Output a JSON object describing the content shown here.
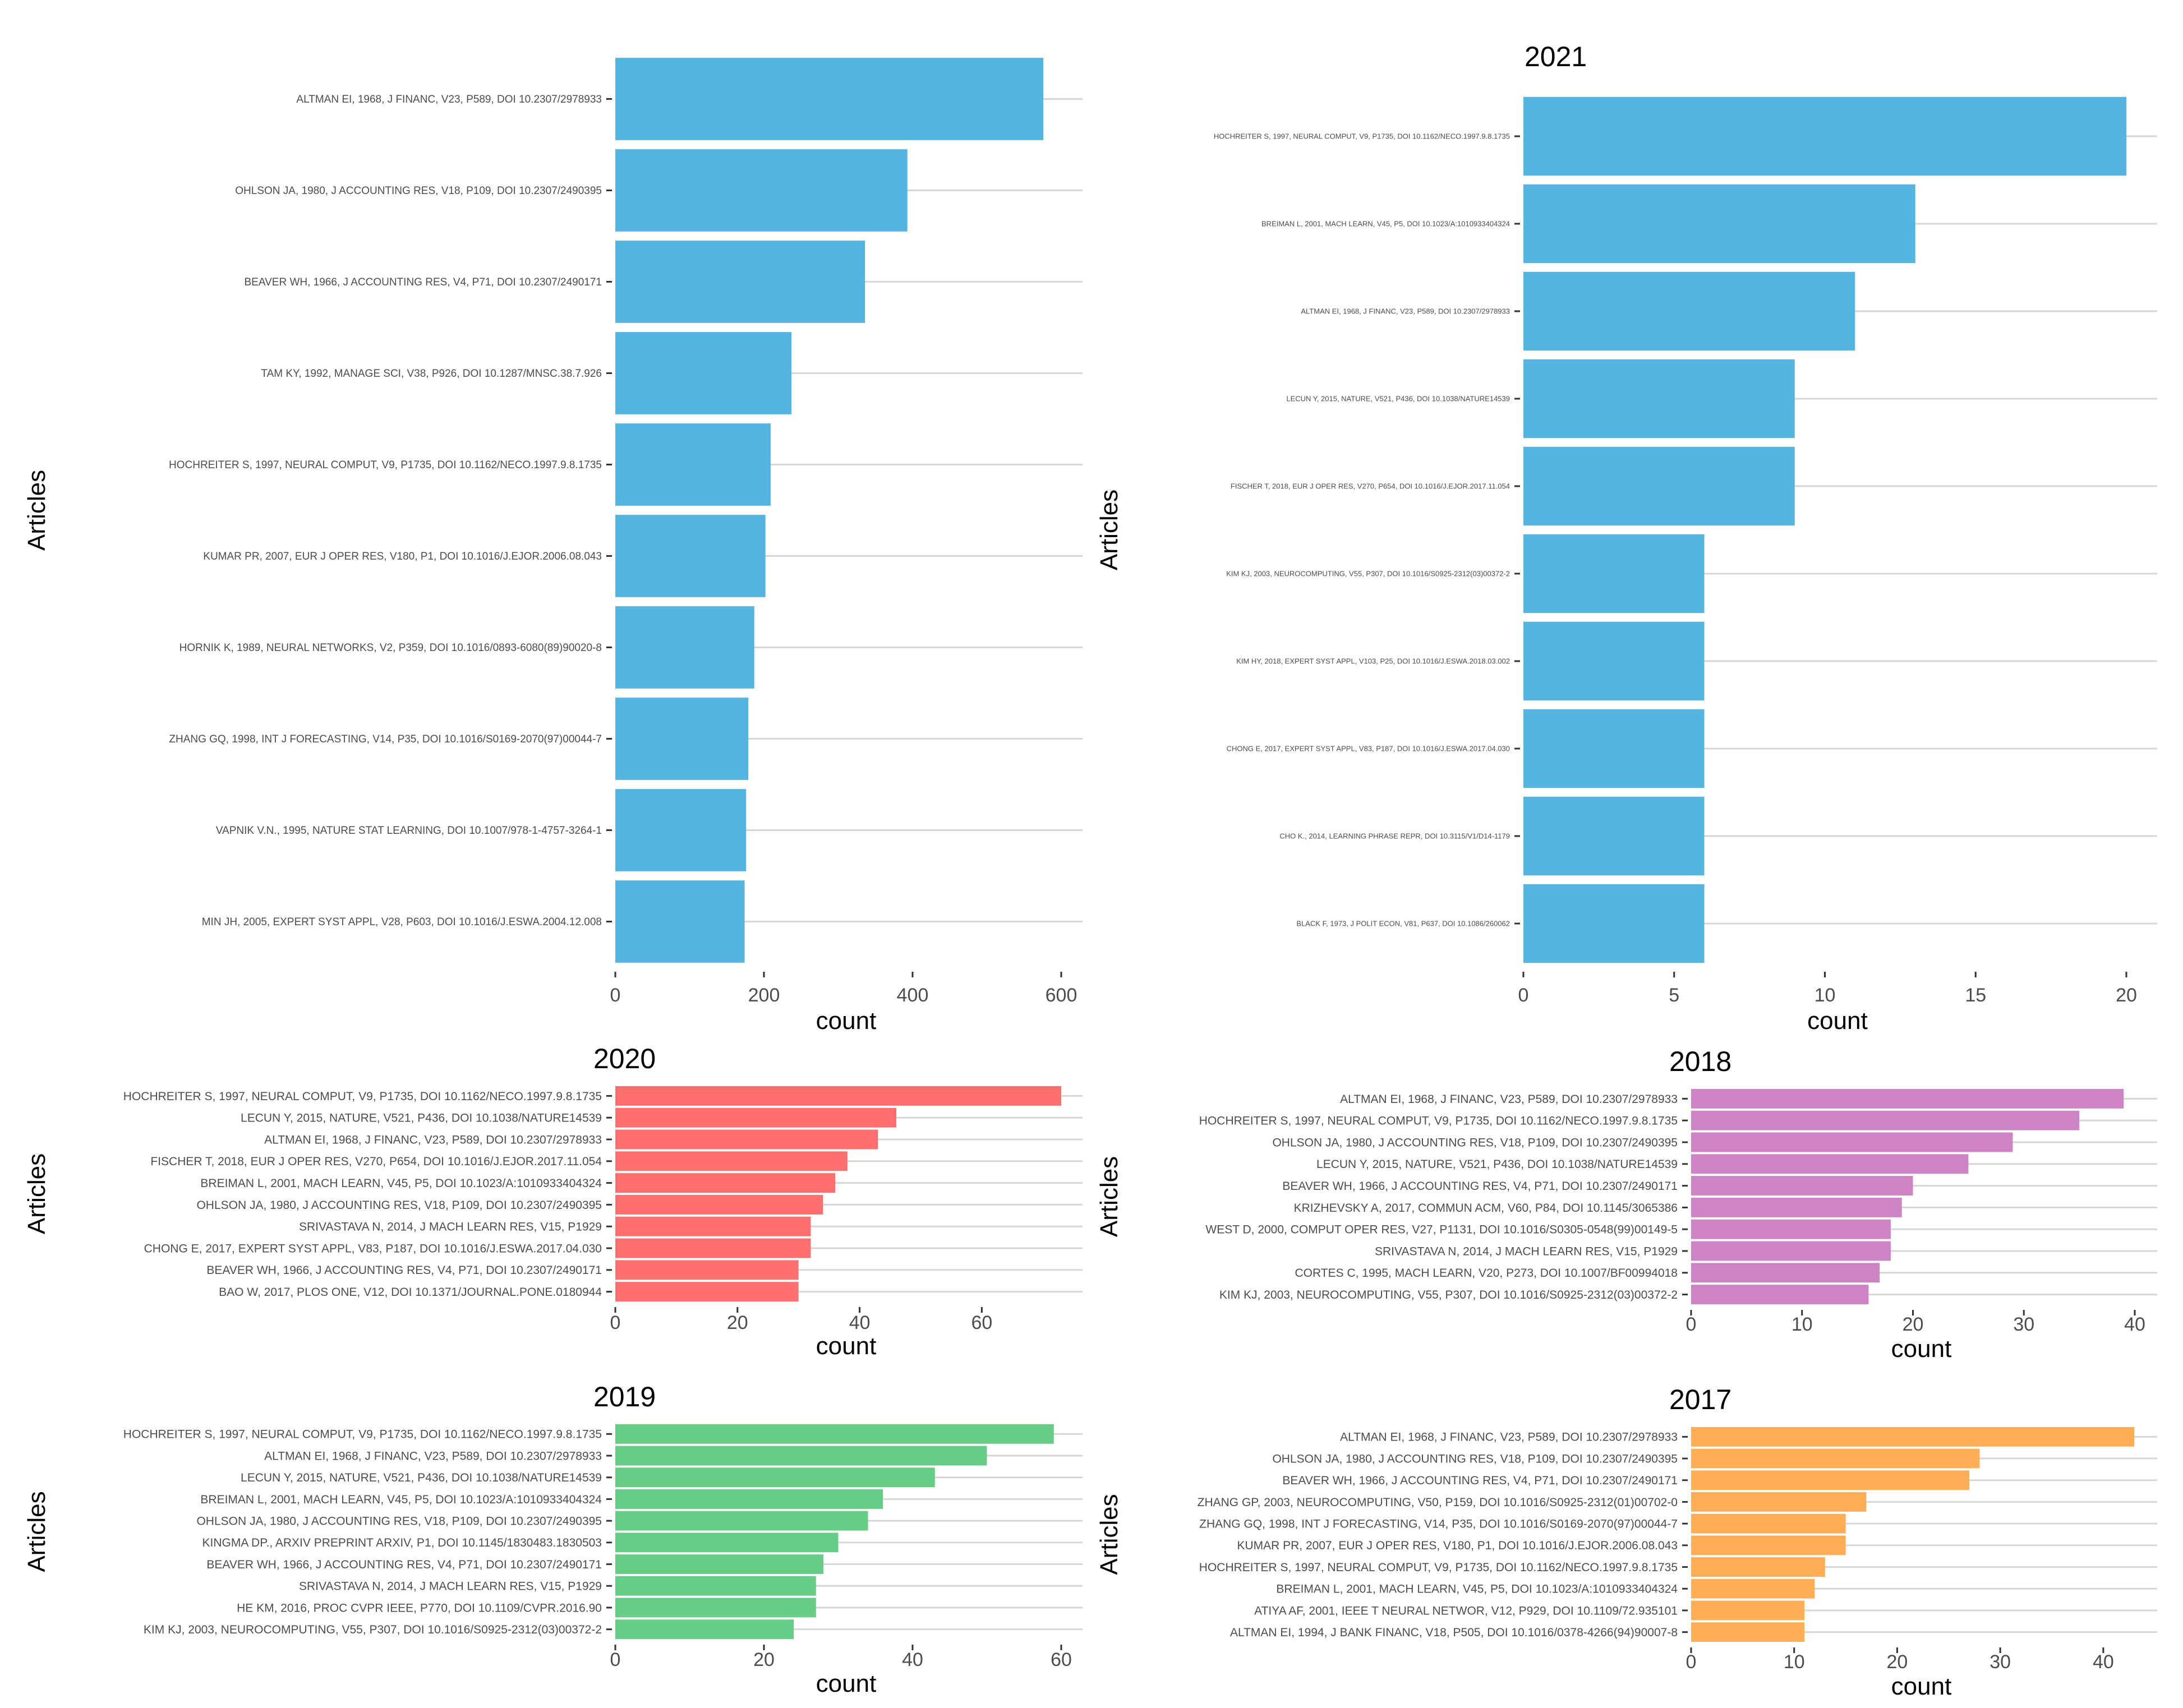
{
  "chart_data": [
    {
      "type": "bar",
      "orientation": "horizontal",
      "title": "",
      "xlabel": "count",
      "ylabel": "Articles",
      "color": "#56b4e0",
      "xlim": [
        0,
        600
      ],
      "xticks": [
        0,
        200,
        400,
        600
      ],
      "grid": true,
      "categories": [
        "ALTMAN EI, 1968, J FINANC, V23, P589, DOI 10.2307/2978933",
        "OHLSON JA, 1980, J ACCOUNTING RES, V18, P109, DOI 10.2307/2490395",
        "BEAVER WH, 1966, J ACCOUNTING RES, V4, P71, DOI 10.2307/2490171",
        "TAM KY, 1992, MANAGE SCI, V38, P926, DOI 10.1287/MNSC.38.7.926",
        "HOCHREITER S, 1997, NEURAL COMPUT, V9, P1735, DOI 10.1162/NECO.1997.9.8.1735",
        "KUMAR PR, 2007, EUR J OPER RES, V180, P1, DOI 10.1016/J.EJOR.2006.08.043",
        "HORNIK K, 1989, NEURAL NETWORKS, V2, P359, DOI 10.1016/0893-6080(89)90020-8",
        "ZHANG GQ, 1998, INT J FORECASTING, V14, P35, DOI 10.1016/S0169-2070(97)00044-7",
        "VAPNIK V.N., 1995, NATURE STAT LEARNING, DOI 10.1007/978-1-4757-3264-1",
        "MIN JH, 2005, EXPERT SYST APPL, V28, P603, DOI 10.1016/J.ESWA.2004.12.008"
      ],
      "values": [
        576,
        393,
        336,
        237,
        209,
        202,
        187,
        179,
        176,
        174
      ]
    },
    {
      "type": "bar",
      "orientation": "horizontal",
      "title": "2021",
      "xlabel": "count",
      "ylabel": "Articles",
      "color": "#56b4e0",
      "xlim": [
        0,
        20
      ],
      "xticks": [
        0,
        5,
        10,
        15,
        20
      ],
      "grid": true,
      "categories": [
        "HOCHREITER S, 1997, NEURAL COMPUT, V9, P1735, DOI 10.1162/NECO.1997.9.8.1735",
        "BREIMAN L, 2001, MACH LEARN, V45, P5, DOI 10.1023/A:1010933404324",
        "ALTMAN EI, 1968, J FINANC, V23, P589, DOI 10.2307/2978933",
        "LECUN Y, 2015, NATURE, V521, P436, DOI 10.1038/NATURE14539",
        "FISCHER T, 2018, EUR J OPER RES, V270, P654, DOI 10.1016/J.EJOR.2017.11.054",
        "KIM KJ, 2003, NEUROCOMPUTING, V55, P307, DOI 10.1016/S0925-2312(03)00372-2",
        "KIM HY, 2018, EXPERT SYST APPL, V103, P25, DOI 10.1016/J.ESWA.2018.03.002",
        "CHONG E, 2017, EXPERT SYST APPL, V83, P187, DOI 10.1016/J.ESWA.2017.04.030",
        "CHO K., 2014, LEARNING PHRASE REPR, DOI 10.3115/V1/D14-1179",
        "BLACK F, 1973, J POLIT ECON, V81, P637, DOI 10.1086/260062"
      ],
      "values": [
        20,
        13,
        11,
        9,
        9,
        6,
        6,
        6,
        6,
        6
      ]
    },
    {
      "type": "bar",
      "orientation": "horizontal",
      "title": "2020",
      "xlabel": "count",
      "ylabel": "Articles",
      "color": "#fe6f6f",
      "xlim": [
        0,
        73
      ],
      "xticks": [
        0,
        20,
        40,
        60
      ],
      "grid": true,
      "categories": [
        "HOCHREITER S, 1997, NEURAL COMPUT, V9, P1735, DOI 10.1162/NECO.1997.9.8.1735",
        "LECUN Y, 2015, NATURE, V521, P436, DOI 10.1038/NATURE14539",
        "ALTMAN EI, 1968, J FINANC, V23, P589, DOI 10.2307/2978933",
        "FISCHER T, 2018, EUR J OPER RES, V270, P654, DOI 10.1016/J.EJOR.2017.11.054",
        "BREIMAN L, 2001, MACH LEARN, V45, P5, DOI 10.1023/A:1010933404324",
        "OHLSON JA, 1980, J ACCOUNTING RES, V18, P109, DOI 10.2307/2490395",
        "SRIVASTAVA N, 2014, J MACH LEARN RES, V15, P1929",
        "CHONG E, 2017, EXPERT SYST APPL, V83, P187, DOI 10.1016/J.ESWA.2017.04.030",
        "BEAVER WH, 1966, J ACCOUNTING RES, V4, P71, DOI 10.2307/2490171",
        "BAO W, 2017, PLOS ONE, V12, DOI 10.1371/JOURNAL.PONE.0180944"
      ],
      "values": [
        73,
        46,
        43,
        38,
        36,
        34,
        32,
        32,
        30,
        30
      ]
    },
    {
      "type": "bar",
      "orientation": "horizontal",
      "title": "2018",
      "xlabel": "count",
      "ylabel": "Articles",
      "color": "#cc84c4",
      "xlim": [
        0,
        40
      ],
      "xticks": [
        0,
        10,
        20,
        30,
        40
      ],
      "grid": true,
      "categories": [
        "ALTMAN EI, 1968, J FINANC, V23, P589, DOI 10.2307/2978933",
        "HOCHREITER S, 1997, NEURAL COMPUT, V9, P1735, DOI 10.1162/NECO.1997.9.8.1735",
        "OHLSON JA, 1980, J ACCOUNTING RES, V18, P109, DOI 10.2307/2490395",
        "LECUN Y, 2015, NATURE, V521, P436, DOI 10.1038/NATURE14539",
        "BEAVER WH, 1966, J ACCOUNTING RES, V4, P71, DOI 10.2307/2490171",
        "KRIZHEVSKY A, 2017, COMMUN ACM, V60, P84, DOI 10.1145/3065386",
        "WEST D, 2000, COMPUT OPER RES, V27, P1131, DOI 10.1016/S0305-0548(99)00149-5",
        "SRIVASTAVA N, 2014, J MACH LEARN RES, V15, P1929",
        "CORTES C, 1995, MACH LEARN, V20, P273, DOI 10.1007/BF00994018",
        "KIM KJ, 2003, NEUROCOMPUTING, V55, P307, DOI 10.1016/S0925-2312(03)00372-2"
      ],
      "values": [
        39,
        35,
        29,
        25,
        20,
        19,
        18,
        18,
        17,
        16
      ]
    },
    {
      "type": "bar",
      "orientation": "horizontal",
      "title": "2019",
      "xlabel": "count",
      "ylabel": "Articles",
      "color": "#66cc86",
      "xlim": [
        0,
        60
      ],
      "xticks": [
        0,
        20,
        40,
        60
      ],
      "grid": true,
      "categories": [
        "HOCHREITER S, 1997, NEURAL COMPUT, V9, P1735, DOI 10.1162/NECO.1997.9.8.1735",
        "ALTMAN EI, 1968, J FINANC, V23, P589, DOI 10.2307/2978933",
        "LECUN Y, 2015, NATURE, V521, P436, DOI 10.1038/NATURE14539",
        "BREIMAN L, 2001, MACH LEARN, V45, P5, DOI 10.1023/A:1010933404324",
        "OHLSON JA, 1980, J ACCOUNTING RES, V18, P109, DOI 10.2307/2490395",
        "KINGMA DP., ARXIV PREPRINT ARXIV, P1, DOI 10.1145/1830483.1830503",
        "BEAVER WH, 1966, J ACCOUNTING RES, V4, P71, DOI 10.2307/2490171",
        "SRIVASTAVA N, 2014, J MACH LEARN RES, V15, P1929",
        "HE KM, 2016, PROC CVPR IEEE, P770, DOI 10.1109/CVPR.2016.90",
        "KIM KJ, 2003, NEUROCOMPUTING, V55, P307, DOI 10.1016/S0925-2312(03)00372-2"
      ],
      "values": [
        59,
        50,
        43,
        36,
        34,
        30,
        28,
        27,
        27,
        24
      ]
    },
    {
      "type": "bar",
      "orientation": "horizontal",
      "title": "2017",
      "xlabel": "count",
      "ylabel": "Articles",
      "color": "#ffae57",
      "xlim": [
        0,
        43
      ],
      "xticks": [
        0,
        10,
        20,
        30,
        40
      ],
      "grid": true,
      "categories": [
        "ALTMAN EI, 1968, J FINANC, V23, P589, DOI 10.2307/2978933",
        "OHLSON JA, 1980, J ACCOUNTING RES, V18, P109, DOI 10.2307/2490395",
        "BEAVER WH, 1966, J ACCOUNTING RES, V4, P71, DOI 10.2307/2490171",
        "ZHANG GP, 2003, NEUROCOMPUTING, V50, P159, DOI 10.1016/S0925-2312(01)00702-0",
        "ZHANG GQ, 1998, INT J FORECASTING, V14, P35, DOI 10.1016/S0169-2070(97)00044-7",
        "KUMAR PR, 2007, EUR J OPER RES, V180, P1, DOI 10.1016/J.EJOR.2006.08.043",
        "HOCHREITER S, 1997, NEURAL COMPUT, V9, P1735, DOI 10.1162/NECO.1997.9.8.1735",
        "BREIMAN L, 2001, MACH LEARN, V45, P5, DOI 10.1023/A:1010933404324",
        "ATIYA AF, 2001, IEEE T NEURAL NETWOR, V12, P929, DOI 10.1109/72.935101",
        "ALTMAN EI, 1994, J BANK FINANC, V18, P505, DOI 10.1016/0378-4266(94)90007-8"
      ],
      "values": [
        43,
        28,
        27,
        17,
        15,
        15,
        13,
        12,
        11,
        11
      ]
    }
  ]
}
